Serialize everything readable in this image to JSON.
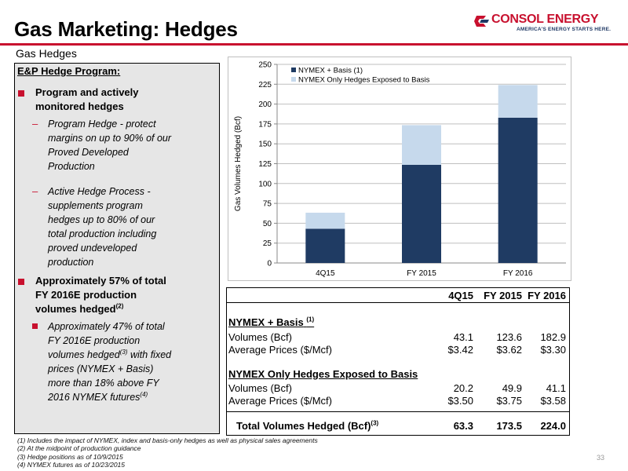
{
  "header": {
    "title": "Gas Marketing: Hedges",
    "logo_name": "CONSOL ENERGY",
    "logo_tagline": "AMERICA'S ENERGY STARTS HERE."
  },
  "subtitle": "Gas Hedges",
  "left_panel": {
    "heading": "E&P Hedge Program:",
    "bullet1": [
      "Program and actively",
      "monitored hedges"
    ],
    "sub1": [
      "Program Hedge - protect",
      "margins on up to 90% of our",
      "Proved Developed",
      "Production"
    ],
    "sub2": [
      "Active Hedge Process -",
      "supplements program",
      "hedges up to 80% of our",
      "total production including",
      "proved undeveloped",
      "production"
    ],
    "bullet2": [
      "Approximately 57% of total",
      "FY 2016E production",
      "volumes hedged"
    ],
    "bullet2_sup": "(2)",
    "sub3": [
      "Approximately 47% of total",
      "FY 2016E production",
      "volumes hedged",
      "prices (NYMEX + Basis)",
      "more than 18% above FY",
      "2016 NYMEX futures"
    ],
    "sub3_sup_a": "(3)",
    "sub3_after_sup": " with fixed",
    "sub3_sup_b": "(4)"
  },
  "chart_data": {
    "type": "bar",
    "stacked": true,
    "categories": [
      "4Q15",
      "FY 2015",
      "FY 2016"
    ],
    "series": [
      {
        "name": "NYMEX + Basis (1)",
        "values": [
          43.1,
          123.6,
          182.9
        ],
        "color": "#1f3b63"
      },
      {
        "name": "NYMEX Only Hedges Exposed to Basis",
        "values": [
          20.2,
          49.9,
          41.1
        ],
        "color": "#c6d9ec"
      }
    ],
    "ylabel": "Gas Volumes Hedged (Bcf)",
    "ylim": [
      0,
      250
    ],
    "yticks": [
      0,
      25,
      50,
      75,
      100,
      125,
      150,
      175,
      200,
      225,
      250
    ],
    "grid": true,
    "legend": "top-left"
  },
  "table": {
    "columns": [
      "4Q15",
      "FY 2015",
      "FY 2016"
    ],
    "section1_title": "NYMEX + Basis",
    "section1_sup": "(1)",
    "section1_rows": [
      {
        "label": "Volumes (Bcf)",
        "values": [
          "43.1",
          "123.6",
          "182.9"
        ]
      },
      {
        "label": "Average Prices ($/Mcf)",
        "values": [
          "$3.42",
          "$3.62",
          "$3.30"
        ]
      }
    ],
    "section2_title": "NYMEX Only Hedges Exposed to Basis",
    "section2_rows": [
      {
        "label": "Volumes (Bcf)",
        "values": [
          "20.2",
          "49.9",
          "41.1"
        ]
      },
      {
        "label": "Average Prices ($/Mcf)",
        "values": [
          "$3.50",
          "$3.75",
          "$3.58"
        ]
      }
    ],
    "total_label": "Total Volumes Hedged (Bcf)",
    "total_sup": "(3)",
    "total_values": [
      "63.3",
      "173.5",
      "224.0"
    ]
  },
  "footnotes": [
    "(1)  Includes the impact of NYMEX, index and basis-only hedges as well as physical sales agreements",
    "(2)  At the midpoint of production guidance",
    "(3)  Hedge positions as of 10/9/2015",
    "(4)  NYMEX futures as of 10/23/2015"
  ],
  "page_number": "33"
}
